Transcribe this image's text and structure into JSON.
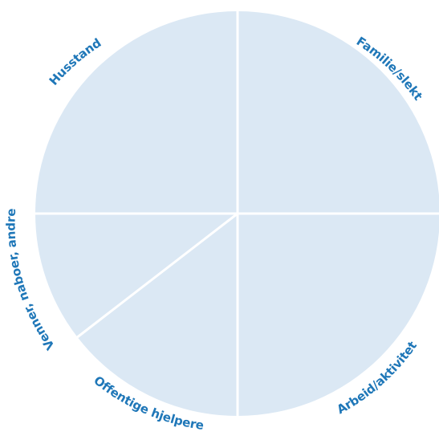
{
  "colors": {
    "sector_fill": "#dbe8f4",
    "divider": "#ffffff",
    "label": "#1f77b8"
  },
  "sectors": [
    {
      "id": "familie",
      "label": "Familie/slekt"
    },
    {
      "id": "arbeid",
      "label": "Arbeid/aktivitet"
    },
    {
      "id": "offentlige",
      "label": "Offentige hjelpere"
    },
    {
      "id": "venner",
      "label": "Venner, naboer, andre"
    },
    {
      "id": "husstand",
      "label": "Husstand"
    }
  ]
}
